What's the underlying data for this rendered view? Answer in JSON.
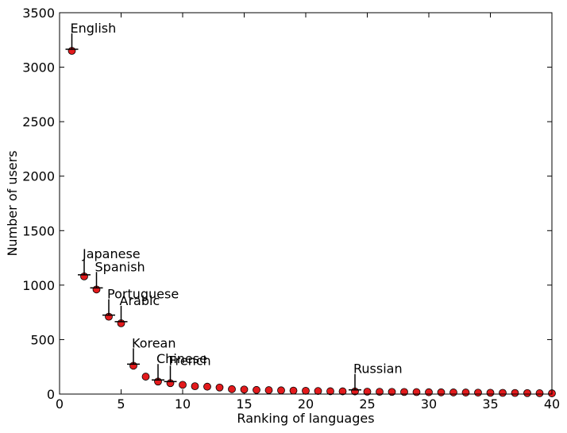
{
  "chart_data": {
    "type": "scatter",
    "title": "",
    "xlabel": "Ranking of languages",
    "ylabel": "Number of users",
    "xlim": [
      0,
      40
    ],
    "ylim": [
      0,
      3500
    ],
    "xticks": [
      0,
      5,
      10,
      15,
      20,
      25,
      30,
      35,
      40
    ],
    "yticks": [
      0,
      500,
      1000,
      1500,
      2000,
      2500,
      3000,
      3500
    ],
    "grid": false,
    "legend": "none",
    "marker_color": "#e31a1c",
    "marker_edge_color": "#000000",
    "points": [
      {
        "x": 1,
        "y": 3150
      },
      {
        "x": 2,
        "y": 1080
      },
      {
        "x": 3,
        "y": 960
      },
      {
        "x": 4,
        "y": 710
      },
      {
        "x": 5,
        "y": 650
      },
      {
        "x": 6,
        "y": 260
      },
      {
        "x": 7,
        "y": 160
      },
      {
        "x": 8,
        "y": 115
      },
      {
        "x": 9,
        "y": 100
      },
      {
        "x": 10,
        "y": 85
      },
      {
        "x": 11,
        "y": 72
      },
      {
        "x": 12,
        "y": 68
      },
      {
        "x": 13,
        "y": 60
      },
      {
        "x": 14,
        "y": 45
      },
      {
        "x": 15,
        "y": 42
      },
      {
        "x": 16,
        "y": 38
      },
      {
        "x": 17,
        "y": 36
      },
      {
        "x": 18,
        "y": 34
      },
      {
        "x": 19,
        "y": 32
      },
      {
        "x": 20,
        "y": 30
      },
      {
        "x": 21,
        "y": 28
      },
      {
        "x": 22,
        "y": 26
      },
      {
        "x": 23,
        "y": 25
      },
      {
        "x": 24,
        "y": 24
      },
      {
        "x": 25,
        "y": 22
      },
      {
        "x": 26,
        "y": 21
      },
      {
        "x": 27,
        "y": 20
      },
      {
        "x": 28,
        "y": 19
      },
      {
        "x": 29,
        "y": 18
      },
      {
        "x": 30,
        "y": 17
      },
      {
        "x": 31,
        "y": 16
      },
      {
        "x": 32,
        "y": 15
      },
      {
        "x": 33,
        "y": 14
      },
      {
        "x": 34,
        "y": 13
      },
      {
        "x": 35,
        "y": 12
      },
      {
        "x": 36,
        "y": 11
      },
      {
        "x": 37,
        "y": 10
      },
      {
        "x": 38,
        "y": 9
      },
      {
        "x": 39,
        "y": 8
      },
      {
        "x": 40,
        "y": 7
      }
    ],
    "annotations": [
      {
        "text": "English",
        "x": 1,
        "y": 3150
      },
      {
        "text": "Japanese",
        "x": 2,
        "y": 1080
      },
      {
        "text": "Spanish",
        "x": 3,
        "y": 960
      },
      {
        "text": "Portuguese",
        "x": 4,
        "y": 710
      },
      {
        "text": "Arabic",
        "x": 5,
        "y": 650
      },
      {
        "text": "Korean",
        "x": 6,
        "y": 260
      },
      {
        "text": "Chinese",
        "x": 8,
        "y": 115
      },
      {
        "text": "French",
        "x": 9,
        "y": 100
      },
      {
        "text": "Russian",
        "x": 24,
        "y": 24
      }
    ]
  }
}
